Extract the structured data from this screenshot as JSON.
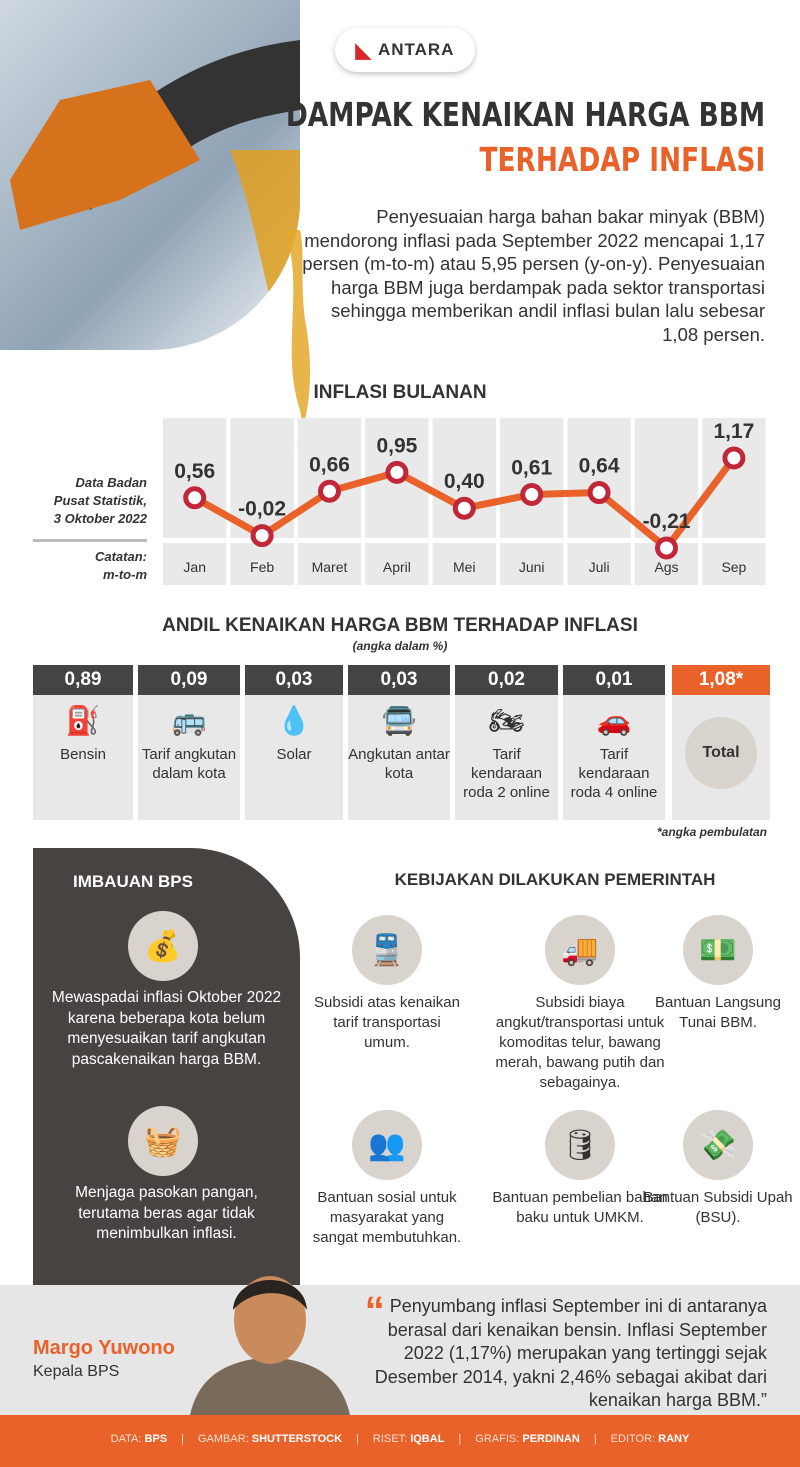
{
  "logo": "ANTARA",
  "title": {
    "line1": "DAMPAK KENAIKAN HARGA BBM",
    "line2": "TERHADAP INFLASI"
  },
  "intro": "Penyesuaian harga bahan bakar minyak (BBM) mendorong inflasi pada September 2022 mencapai 1,17 persen (m-to-m) atau 5,95 persen (y-on-y). Penyesuaian harga BBM juga berdampak pada sektor transportasi sehingga memberikan andil inflasi bulan lalu sebesar 1,08 persen.",
  "colors": {
    "orange": "#e8622a",
    "dark": "#474340",
    "line": "#e8622a",
    "marker": "#c0283a"
  },
  "chart_data": {
    "type": "line",
    "title": "INFLASI BULANAN",
    "categories": [
      "Jan",
      "Feb",
      "Maret",
      "April",
      "Mei",
      "Juni",
      "Juli",
      "Ags",
      "Sep"
    ],
    "values": [
      0.56,
      -0.02,
      0.66,
      0.95,
      0.4,
      0.61,
      0.64,
      -0.21,
      1.17
    ],
    "labels": [
      "0,56",
      "-0,02",
      "0,66",
      "0,95",
      "0,40",
      "0,61",
      "0,64",
      "-0,21",
      "1,17"
    ],
    "source": [
      "Data Badan",
      "Pusat Statistik,",
      "3 Oktober 2022"
    ],
    "note": [
      "Catatan:",
      "m-to-m"
    ],
    "grid": false
  },
  "andil": {
    "title": "ANDIL KENAIKAN HARGA BBM TERHADAP INFLASI",
    "subtitle": "(angka dalam %)",
    "items": [
      {
        "value": "0,89",
        "label": "Bensin",
        "icon": "fuel-pump-icon",
        "glyph": "⛽"
      },
      {
        "value": "0,09",
        "label": "Tarif angkutan dalam kota",
        "icon": "bus-icon",
        "glyph": "🚌"
      },
      {
        "value": "0,03",
        "label": "Solar",
        "icon": "oil-drop-icon",
        "glyph": "💧"
      },
      {
        "value": "0,03",
        "label": "Angkutan antar kota",
        "icon": "intercity-bus-icon",
        "glyph": "🚍"
      },
      {
        "value": "0,02",
        "label": "Tarif kendaraan roda 2 online",
        "icon": "motorcycle-icon",
        "glyph": "🏍"
      },
      {
        "value": "0,01",
        "label": "Tarif kendaraan roda 4 online",
        "icon": "cars-icon",
        "glyph": "🚗"
      }
    ],
    "total": {
      "value": "1,08*",
      "label": "Total"
    },
    "footnote": "*angka pembulatan"
  },
  "imbauan": {
    "title": "IMBAUAN BPS",
    "items": [
      {
        "text": "Mewaspadai inflasi Oktober 2022 karena beberapa kota belum menyesuaikan tarif angkutan pascakenaikan harga BBM.",
        "icon": "money-bag-chart-icon",
        "glyph": "💰"
      },
      {
        "text": "Menjaga pasokan pangan, terutama beras agar tidak menimbulkan inflasi.",
        "icon": "food-crate-icon",
        "glyph": "🧺"
      }
    ]
  },
  "kebijakan": {
    "title": "KEBIJAKAN DILAKUKAN PEMERINTAH",
    "items": [
      {
        "text": "Subsidi atas kenaikan tarif transportasi umum.",
        "icon": "transport-icon",
        "glyph": "🚆"
      },
      {
        "text": "Subsidi biaya angkut/transportasi untuk komoditas telur, bawang merah, bawang putih dan sebagainya.",
        "icon": "truck-icon",
        "glyph": "🚚"
      },
      {
        "text": "Bantuan Langsung Tunai BBM.",
        "icon": "cash-hand-icon",
        "glyph": "💵"
      },
      {
        "text": "Bantuan sosial untuk masyarakat yang sangat membutuhkan.",
        "icon": "people-icon",
        "glyph": "👥"
      },
      {
        "text": "Bantuan pembelian bahan baku untuk UMKM.",
        "icon": "raw-materials-icon",
        "glyph": "🛢"
      },
      {
        "text": "Bantuan Subsidi Upah (BSU).",
        "icon": "wage-subsidy-icon",
        "glyph": "💸"
      }
    ]
  },
  "quote": {
    "name": "Margo Yuwono",
    "role": "Kepala BPS",
    "mark": "“",
    "text": "Penyumbang inflasi September ini di antaranya berasal dari kenaikan bensin. Inflasi September 2022 (1,17%) merupakan yang tertinggi sejak Desember 2014, yakni 2,46% sebagai akibat dari kenaikan harga BBM.”"
  },
  "credits": [
    {
      "k": "DATA:",
      "v": "BPS"
    },
    {
      "k": "GAMBAR:",
      "v": "SHUTTERSTOCK"
    },
    {
      "k": "RISET:",
      "v": "IQBAL"
    },
    {
      "k": "GRAFIS:",
      "v": "PERDINAN"
    },
    {
      "k": "EDITOR:",
      "v": "RANY"
    }
  ]
}
